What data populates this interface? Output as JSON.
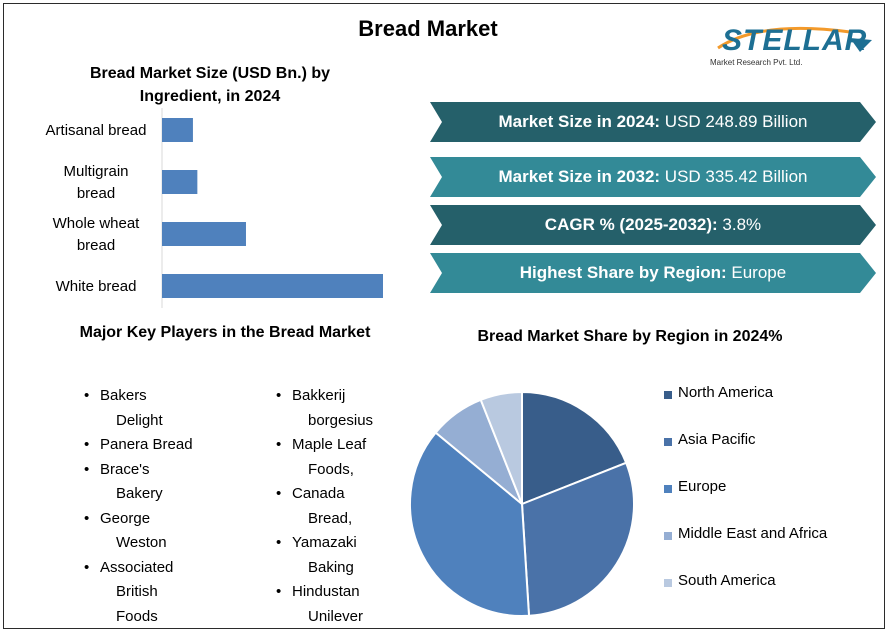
{
  "header": {
    "title": "Bread Market"
  },
  "logo": {
    "name": "STELLAR",
    "sub": "Market Research Pvt. Ltd."
  },
  "bar_section": {
    "title_line1": "Bread Market Size (USD Bn.) by",
    "title_line2": "Ingredient, in 2024"
  },
  "key_values": [
    {
      "label": "Market Size in 2024:",
      "value": " USD 248.89 Billion",
      "color": "#25606a"
    },
    {
      "label": "Market Size in 2032:",
      "value": " USD 335.42 Billion",
      "color": "#338a97"
    },
    {
      "label": "CAGR % (2025-2032):",
      "value": " 3.8%",
      "color": "#25606a"
    },
    {
      "label": "Highest Share by Region:",
      "value": " Europe",
      "color": "#338a97"
    }
  ],
  "players": {
    "title": "Major Key Players in the Bread Market",
    "col1": [
      "Bakers",
      "Delight",
      "Panera Bread",
      "Brace's",
      "Bakery",
      "George",
      "Weston",
      "Associated",
      "British",
      "Foods"
    ],
    "col2": [
      "Bakkerij",
      "borgesius",
      "Maple Leaf",
      "Foods,",
      "Canada",
      "Bread,",
      "Yamazaki",
      "Baking",
      "Hindustan",
      "Unilever"
    ]
  },
  "pie_section": {
    "title": "Bread Market Share by Region in 2024%"
  },
  "chart_data": [
    {
      "type": "bar",
      "orientation": "horizontal",
      "categories": [
        [
          "Artisanal bread"
        ],
        [
          "Multigrain",
          "bread"
        ],
        [
          "Whole wheat",
          "bread"
        ],
        [
          "White bread"
        ]
      ],
      "values": [
        14,
        16,
        38,
        100
      ],
      "bar_color": "#4f81bd",
      "grid": false
    },
    {
      "type": "pie",
      "labels": [
        "North America",
        "Asia Pacific",
        "Europe",
        "Middle East and Africa",
        "South America"
      ],
      "values": [
        19,
        30,
        37,
        8,
        6
      ],
      "colors": [
        "#385d8a",
        "#4a72a8",
        "#4f81bd",
        "#95aed3",
        "#b9c9e0"
      ],
      "legend": "right"
    }
  ]
}
